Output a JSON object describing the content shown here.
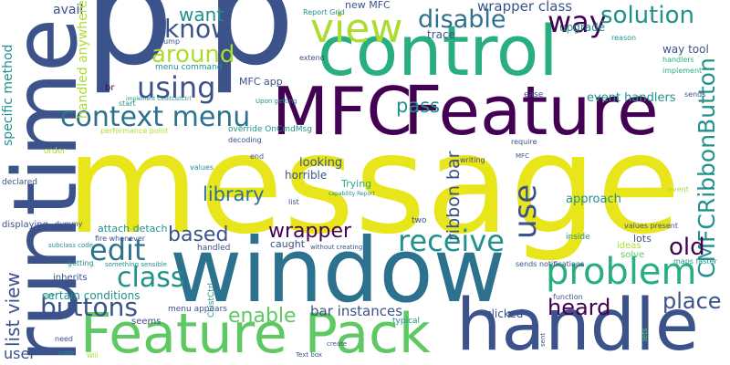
{
  "colors": {
    "yellow": "#e8e51a",
    "purple": "#440154",
    "indigo": "#3b528b",
    "blue": "#2c728e",
    "teal": "#21918c",
    "green": "#28ae80",
    "lime": "#5ec962",
    "light_lime": "#addc30"
  },
  "words": [
    {
      "text": "message",
      "color": "yellow"
    },
    {
      "text": "p",
      "color": "indigo"
    },
    {
      "text": "p",
      "color": "indigo"
    },
    {
      "text": "control",
      "color": "green"
    },
    {
      "text": "window",
      "color": "blue"
    },
    {
      "text": "runtime",
      "color": "indigo"
    },
    {
      "text": "handle",
      "color": "indigo"
    },
    {
      "text": "Feature Pack",
      "color": "lime"
    },
    {
      "text": "Feature",
      "color": "purple"
    },
    {
      "text": "MFC",
      "color": "purple"
    },
    {
      "text": "view",
      "color": "light_lime"
    },
    {
      "text": "context menu",
      "color": "blue"
    },
    {
      "text": "problem",
      "color": "green"
    },
    {
      "text": "CMFCRibbonButton",
      "color": "teal"
    },
    {
      "text": "know",
      "color": "indigo"
    },
    {
      "text": "disable",
      "color": "blue"
    },
    {
      "text": "way",
      "color": "purple"
    },
    {
      "text": "solution",
      "color": "teal"
    },
    {
      "text": "using",
      "color": "indigo"
    },
    {
      "text": "around",
      "color": "light_lime"
    },
    {
      "text": "want",
      "color": "teal"
    },
    {
      "text": "edit",
      "color": "blue"
    },
    {
      "text": "receive",
      "color": "teal"
    },
    {
      "text": "use",
      "color": "indigo"
    },
    {
      "text": "old",
      "color": "purple"
    },
    {
      "text": "based",
      "color": "indigo"
    },
    {
      "text": "class",
      "color": "teal"
    },
    {
      "text": "buttons",
      "color": "indigo"
    },
    {
      "text": "enable",
      "color": "lime"
    },
    {
      "text": "heard",
      "color": "purple"
    },
    {
      "text": "place",
      "color": "indigo"
    },
    {
      "text": "wrapper",
      "color": "purple"
    },
    {
      "text": "library",
      "color": "blue"
    },
    {
      "text": "list view",
      "color": "indigo"
    },
    {
      "text": "ribbon bar",
      "color": "indigo"
    },
    {
      "text": "pass",
      "color": "teal"
    },
    {
      "text": "avail",
      "color": "indigo"
    },
    {
      "text": "handled anywhere",
      "color": "light_lime"
    },
    {
      "text": "specific method",
      "color": "teal"
    },
    {
      "text": "new MFC",
      "color": "indigo"
    },
    {
      "text": "wrapper class",
      "color": "indigo"
    },
    {
      "text": "trace",
      "color": "indigo"
    },
    {
      "text": "upgrade",
      "color": "teal"
    },
    {
      "text": "way tool",
      "color": "indigo"
    },
    {
      "text": "handlers",
      "color": "green"
    },
    {
      "text": "implement",
      "color": "green"
    },
    {
      "text": "reason",
      "color": "teal"
    },
    {
      "text": "Report Grid",
      "color": "teal"
    },
    {
      "text": "pump",
      "color": "indigo"
    },
    {
      "text": "menu command",
      "color": "teal"
    },
    {
      "text": "MFC app",
      "color": "indigo"
    },
    {
      "text": "extend",
      "color": "indigo"
    },
    {
      "text": "br",
      "color": "purple"
    },
    {
      "text": "implement CEditListCtrl",
      "color": "teal"
    },
    {
      "text": "Upon getting",
      "color": "teal"
    },
    {
      "text": "start",
      "color": "teal"
    },
    {
      "text": "sends",
      "color": "indigo"
    },
    {
      "text": "ease",
      "color": "indigo"
    },
    {
      "text": "event handlers",
      "color": "teal"
    },
    {
      "text": "performance point",
      "color": "light_lime"
    },
    {
      "text": "override OnCmdMsg",
      "color": "teal"
    },
    {
      "text": "order",
      "color": "light_lime"
    },
    {
      "text": "declared",
      "color": "indigo"
    },
    {
      "text": "decoding",
      "color": "indigo"
    },
    {
      "text": "end",
      "color": "indigo"
    },
    {
      "text": "looking",
      "color": "indigo"
    },
    {
      "text": "horrible",
      "color": "indigo"
    },
    {
      "text": "Trying",
      "color": "green"
    },
    {
      "text": "writing",
      "color": "indigo"
    },
    {
      "text": "MFC",
      "color": "indigo"
    },
    {
      "text": "require",
      "color": "indigo"
    },
    {
      "text": "values",
      "color": "teal"
    },
    {
      "text": "capability Report",
      "color": "teal"
    },
    {
      "text": "event",
      "color": "light_lime"
    },
    {
      "text": "approach",
      "color": "teal"
    },
    {
      "text": "displaying",
      "color": "indigo"
    },
    {
      "text": "dummy",
      "color": "indigo"
    },
    {
      "text": "attach detach",
      "color": "teal"
    },
    {
      "text": "list",
      "color": "indigo"
    },
    {
      "text": "two",
      "color": "indigo"
    },
    {
      "text": "values present",
      "color": "indigo"
    },
    {
      "text": "fire whenever",
      "color": "indigo"
    },
    {
      "text": "subclass code",
      "color": "teal"
    },
    {
      "text": "getting",
      "color": "teal"
    },
    {
      "text": "handled",
      "color": "indigo"
    },
    {
      "text": "without creating",
      "color": "indigo"
    },
    {
      "text": "caught",
      "color": "indigo"
    },
    {
      "text": "inside",
      "color": "teal"
    },
    {
      "text": "ideas",
      "color": "light_lime"
    },
    {
      "text": "lots",
      "color": "indigo"
    },
    {
      "text": "solve",
      "color": "lime"
    },
    {
      "text": "maps faster",
      "color": "teal"
    },
    {
      "text": "inherits",
      "color": "indigo"
    },
    {
      "text": "something sensible",
      "color": "teal"
    },
    {
      "text": "sends notifications",
      "color": "indigo"
    },
    {
      "text": "NET",
      "color": "teal"
    },
    {
      "text": "certain conditions",
      "color": "teal"
    },
    {
      "text": "CListCtrl",
      "color": "teal"
    },
    {
      "text": "function",
      "color": "indigo"
    },
    {
      "text": "menu appears",
      "color": "indigo"
    },
    {
      "text": "bar instances",
      "color": "indigo"
    },
    {
      "text": "clicked",
      "color": "indigo"
    },
    {
      "text": "seems",
      "color": "indigo"
    },
    {
      "text": "typical",
      "color": "teal"
    },
    {
      "text": "user",
      "color": "indigo"
    },
    {
      "text": "need",
      "color": "indigo"
    },
    {
      "text": "code",
      "color": "teal"
    },
    {
      "text": "Will",
      "color": "light_lime"
    },
    {
      "text": "create",
      "color": "indigo"
    },
    {
      "text": "Text box",
      "color": "indigo"
    },
    {
      "text": "sent",
      "color": "indigo"
    },
    {
      "text": "lets",
      "color": "lime"
    }
  ]
}
